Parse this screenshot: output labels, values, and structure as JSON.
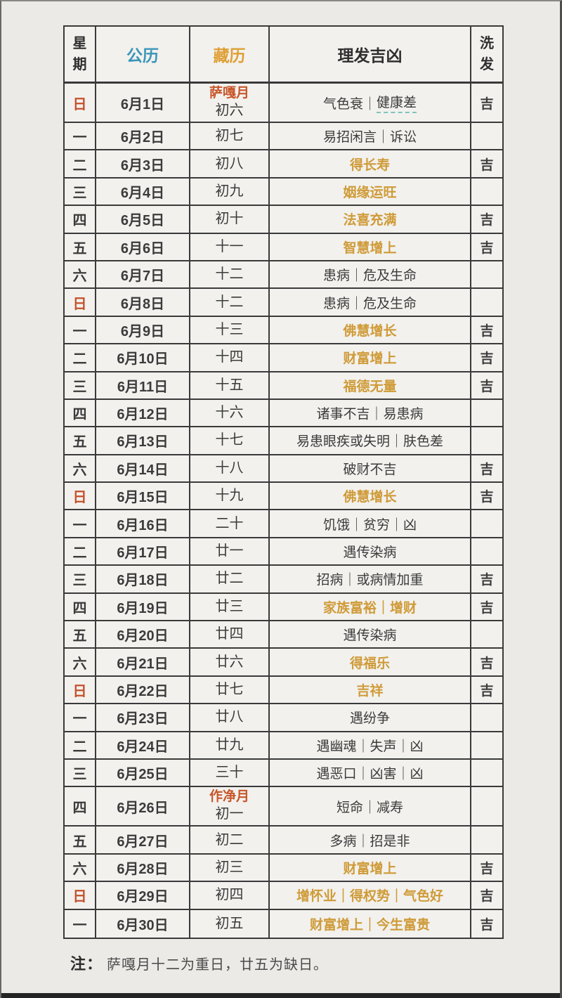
{
  "colors": {
    "page_bg": "#eceae7",
    "cell_bg": "#f2f1ee",
    "border_dark": "#3a3a3a",
    "gregorian_header_blue": "#3b96b8",
    "tibetan_header_gold": "#df9f33",
    "sunday_red": "#c4512b",
    "month_label_red": "#c8562a",
    "auspicious_gold": "#cf9b38",
    "text_dark": "#3b3b3b",
    "underline_teal": "#7fc4b9"
  },
  "note": {
    "label": "注：",
    "text": "萨嘎月十二为重日，廿五为缺日。"
  },
  "table": {
    "headers": {
      "weekday": "星期",
      "gregorian": "公历",
      "tibetan": "藏历",
      "fortune": "理发吉凶",
      "wash": "洗发"
    },
    "rows": [
      {
        "weekday": "日",
        "sunday": true,
        "date": "6月1日",
        "month_label": "萨嘎月",
        "tibetan": "初六",
        "fortune": "气色衰｜健康差",
        "underline": "健康差",
        "gold": false,
        "wash": "吉"
      },
      {
        "weekday": "一",
        "sunday": false,
        "date": "6月2日",
        "tibetan": "初七",
        "fortune": "易招闲言｜诉讼",
        "gold": false,
        "wash": ""
      },
      {
        "weekday": "二",
        "sunday": false,
        "date": "6月3日",
        "tibetan": "初八",
        "fortune": "得长寿",
        "gold": true,
        "wash": "吉"
      },
      {
        "weekday": "三",
        "sunday": false,
        "date": "6月4日",
        "tibetan": "初九",
        "fortune": "姻缘运旺",
        "gold": true,
        "wash": ""
      },
      {
        "weekday": "四",
        "sunday": false,
        "date": "6月5日",
        "tibetan": "初十",
        "fortune": "法喜充满",
        "gold": true,
        "wash": "吉"
      },
      {
        "weekday": "五",
        "sunday": false,
        "date": "6月6日",
        "tibetan": "十一",
        "fortune": "智慧增上",
        "gold": true,
        "wash": "吉"
      },
      {
        "weekday": "六",
        "sunday": false,
        "date": "6月7日",
        "tibetan": "十二",
        "fortune": "患病｜危及生命",
        "gold": false,
        "wash": ""
      },
      {
        "weekday": "日",
        "sunday": true,
        "date": "6月8日",
        "tibetan": "十二",
        "fortune": "患病｜危及生命",
        "gold": false,
        "wash": ""
      },
      {
        "weekday": "一",
        "sunday": false,
        "date": "6月9日",
        "tibetan": "十三",
        "fortune": "佛慧增长",
        "gold": true,
        "wash": "吉"
      },
      {
        "weekday": "二",
        "sunday": false,
        "date": "6月10日",
        "tibetan": "十四",
        "fortune": "财富增上",
        "gold": true,
        "wash": "吉"
      },
      {
        "weekday": "三",
        "sunday": false,
        "date": "6月11日",
        "tibetan": "十五",
        "fortune": "福德无量",
        "gold": true,
        "wash": "吉"
      },
      {
        "weekday": "四",
        "sunday": false,
        "date": "6月12日",
        "tibetan": "十六",
        "fortune": "诸事不吉｜易患病",
        "gold": false,
        "wash": ""
      },
      {
        "weekday": "五",
        "sunday": false,
        "date": "6月13日",
        "tibetan": "十七",
        "fortune": "易患眼疾或失明｜肤色差",
        "gold": false,
        "wash": ""
      },
      {
        "weekday": "六",
        "sunday": false,
        "date": "6月14日",
        "tibetan": "十八",
        "fortune": "破财不吉",
        "gold": false,
        "wash": "吉"
      },
      {
        "weekday": "日",
        "sunday": true,
        "date": "6月15日",
        "tibetan": "十九",
        "fortune": "佛慧增长",
        "gold": true,
        "wash": "吉"
      },
      {
        "weekday": "一",
        "sunday": false,
        "date": "6月16日",
        "tibetan": "二十",
        "fortune": "饥饿｜贫穷｜凶",
        "gold": false,
        "wash": ""
      },
      {
        "weekday": "二",
        "sunday": false,
        "date": "6月17日",
        "tibetan": "廿一",
        "fortune": "遇传染病",
        "gold": false,
        "wash": ""
      },
      {
        "weekday": "三",
        "sunday": false,
        "date": "6月18日",
        "tibetan": "廿二",
        "fortune": "招病｜或病情加重",
        "gold": false,
        "wash": "吉"
      },
      {
        "weekday": "四",
        "sunday": false,
        "date": "6月19日",
        "tibetan": "廿三",
        "fortune": "家族富裕｜增财",
        "gold": true,
        "wash": "吉"
      },
      {
        "weekday": "五",
        "sunday": false,
        "date": "6月20日",
        "tibetan": "廿四",
        "fortune": "遇传染病",
        "gold": false,
        "wash": ""
      },
      {
        "weekday": "六",
        "sunday": false,
        "date": "6月21日",
        "tibetan": "廿六",
        "fortune": "得福乐",
        "gold": true,
        "wash": "吉"
      },
      {
        "weekday": "日",
        "sunday": true,
        "date": "6月22日",
        "tibetan": "廿七",
        "fortune": "吉祥",
        "gold": true,
        "wash": "吉"
      },
      {
        "weekday": "一",
        "sunday": false,
        "date": "6月23日",
        "tibetan": "廿八",
        "fortune": "遇纷争",
        "gold": false,
        "wash": ""
      },
      {
        "weekday": "二",
        "sunday": false,
        "date": "6月24日",
        "tibetan": "廿九",
        "fortune": "遇幽魂｜失声｜凶",
        "gold": false,
        "wash": ""
      },
      {
        "weekday": "三",
        "sunday": false,
        "date": "6月25日",
        "tibetan": "三十",
        "fortune": "遇恶口｜凶害｜凶",
        "gold": false,
        "wash": ""
      },
      {
        "weekday": "四",
        "sunday": false,
        "date": "6月26日",
        "month_label": "作净月",
        "tibetan": "初一",
        "fortune": "短命｜减寿",
        "gold": false,
        "wash": ""
      },
      {
        "weekday": "五",
        "sunday": false,
        "date": "6月27日",
        "tibetan": "初二",
        "fortune": "多病｜招是非",
        "gold": false,
        "wash": ""
      },
      {
        "weekday": "六",
        "sunday": false,
        "date": "6月28日",
        "tibetan": "初三",
        "fortune": "财富增上",
        "gold": true,
        "wash": "吉"
      },
      {
        "weekday": "日",
        "sunday": true,
        "date": "6月29日",
        "tibetan": "初四",
        "fortune": "增怀业｜得权势｜气色好",
        "gold": true,
        "wash": "吉"
      },
      {
        "weekday": "一",
        "sunday": false,
        "date": "6月30日",
        "tibetan": "初五",
        "fortune": "财富增上｜今生富贵",
        "gold": true,
        "wash": "吉"
      }
    ]
  }
}
